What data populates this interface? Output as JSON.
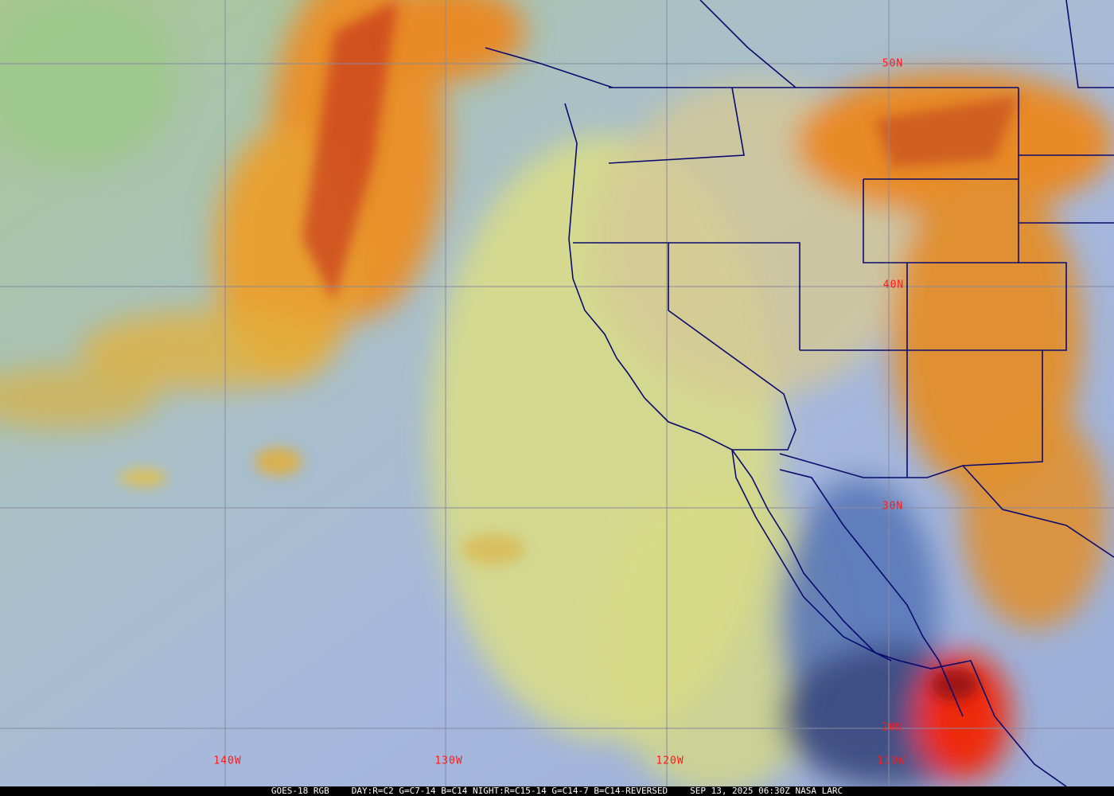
{
  "caption": {
    "satellite": "GOES-18 RGB",
    "recipe": "DAY:R=C2 G=C7-14 B=C14 NIGHT:R=C15-14 G=C14-7 B=C14-REVERSED",
    "timestamp": "SEP 13, 2025 06:30Z NASA LARC"
  },
  "grid": {
    "latitudes": [
      {
        "label": "50N",
        "value": 50
      },
      {
        "label": "40N",
        "value": 40
      },
      {
        "label": "30N",
        "value": 30
      },
      {
        "label": "20N",
        "value": 20
      }
    ],
    "longitudes": [
      {
        "label": "140W",
        "value": -140
      },
      {
        "label": "130W",
        "value": -130
      },
      {
        "label": "120W",
        "value": -120
      },
      {
        "label": "110W",
        "value": -110
      }
    ]
  },
  "colors": {
    "grid": "#8a8aa0",
    "labels": "#ff1a1a",
    "borders": "#0a0a6e",
    "ocean_clear": "#9fb4d8",
    "low_cloud": "#d8dc86",
    "high_cloud": "#e89030",
    "deep_convection": "#e82010"
  }
}
